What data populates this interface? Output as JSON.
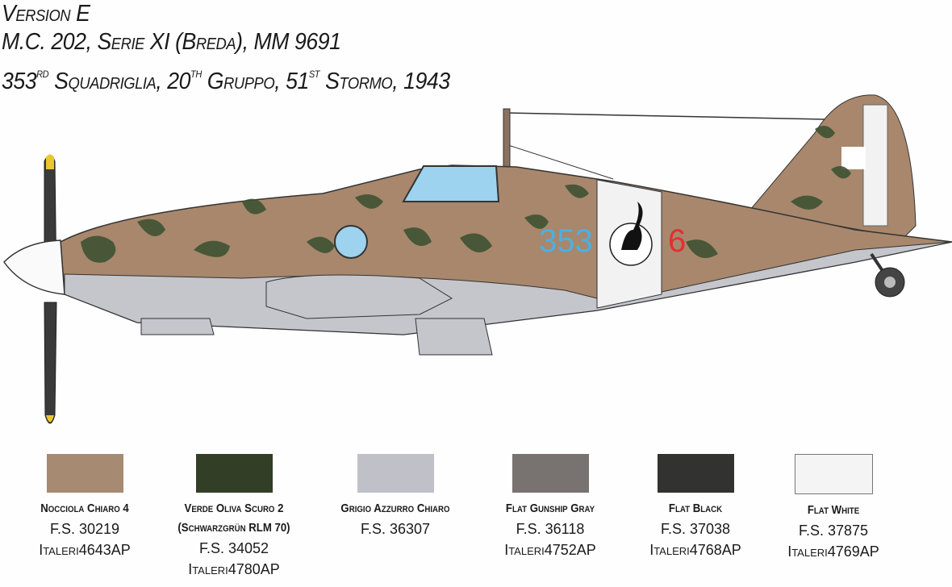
{
  "header": {
    "version": "Version E",
    "aircraft": "M.C. 202, Serie XI (Breda), MM 9691",
    "unit": {
      "squadriglia_num": "353",
      "squadriglia_sup": "RD",
      "squadriglia": "Squadriglia,",
      "gruppo_num": "20",
      "gruppo_sup": "TH",
      "gruppo": "Gruppo,",
      "stormo_num": "51",
      "stormo_sup": "ST",
      "stormo": "Stormo, 1943"
    }
  },
  "aircraft_markings": {
    "squadriglia_code": "353",
    "aircraft_number": "6",
    "colors": {
      "sand": "#a8876c",
      "green": "#3e5233",
      "grey": "#c4c6cc",
      "white": "#f2f2f2",
      "blue": "#4db0e0",
      "red": "#e03030"
    }
  },
  "paints": [
    {
      "name": "Nocciola Chiaro 4",
      "fs": "F.S. 30219",
      "brand": "Italeri",
      "code": "4643AP",
      "color": "#a68a72"
    },
    {
      "name": "Verde Oliva Scuro 2",
      "alt_name": "(Schwarzgrün RLM 70)",
      "fs": "F.S. 34052",
      "brand": "Italeri",
      "code": "4780AP",
      "color": "#323f26"
    },
    {
      "name": "Grigio Azzurro Chiaro",
      "fs": "F.S. 36307",
      "color": "#c0c0c8"
    },
    {
      "name": "Flat Gunship Gray",
      "fs": "F.S. 36118",
      "brand": "Italeri",
      "code": "4752AP",
      "color": "#787370"
    },
    {
      "name": "Flat Black",
      "fs": "F.S. 37038",
      "brand": "Italeri",
      "code": "4768AP",
      "color": "#323230"
    },
    {
      "name": "Flat White",
      "fs": "F.S. 37875",
      "brand": "Italeri",
      "code": "4769AP",
      "color": "#f4f4f4"
    }
  ]
}
